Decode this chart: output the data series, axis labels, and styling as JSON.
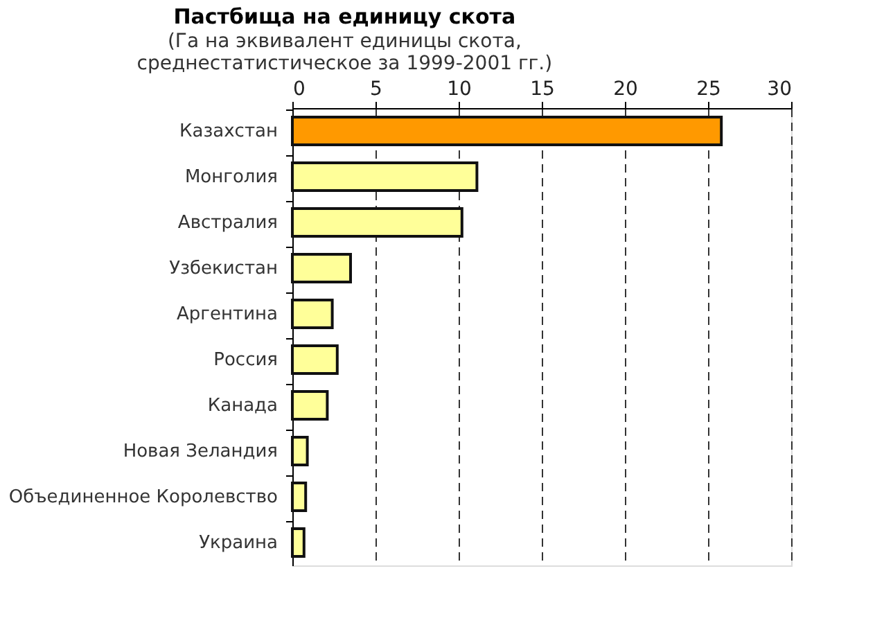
{
  "chart_data": {
    "type": "bar",
    "orientation": "horizontal",
    "title": "Пастбища на единицу скота",
    "subtitle": "(Га на эквивалент единицы скота,\nсреднестатистическое за 1999-2001 гг.)",
    "categories": [
      "Казахстан",
      "Монголия",
      "Австралия",
      "Узбекистан",
      "Аргентина",
      "Россия",
      "Канада",
      "Новая Зеландия",
      "Объединенное Королевство",
      "Украина"
    ],
    "values": [
      25.8,
      11.1,
      10.2,
      3.5,
      2.4,
      2.7,
      2.1,
      0.9,
      0.8,
      0.7
    ],
    "colors": [
      "#ff9900",
      "#ffff99",
      "#ffff99",
      "#ffff99",
      "#ffff99",
      "#ffff99",
      "#ffff99",
      "#ffff99",
      "#ffff99",
      "#ffff99"
    ],
    "xlim": [
      0,
      30
    ],
    "xticks": [
      0,
      5,
      10,
      15,
      20,
      25,
      30
    ],
    "grid": "x"
  }
}
